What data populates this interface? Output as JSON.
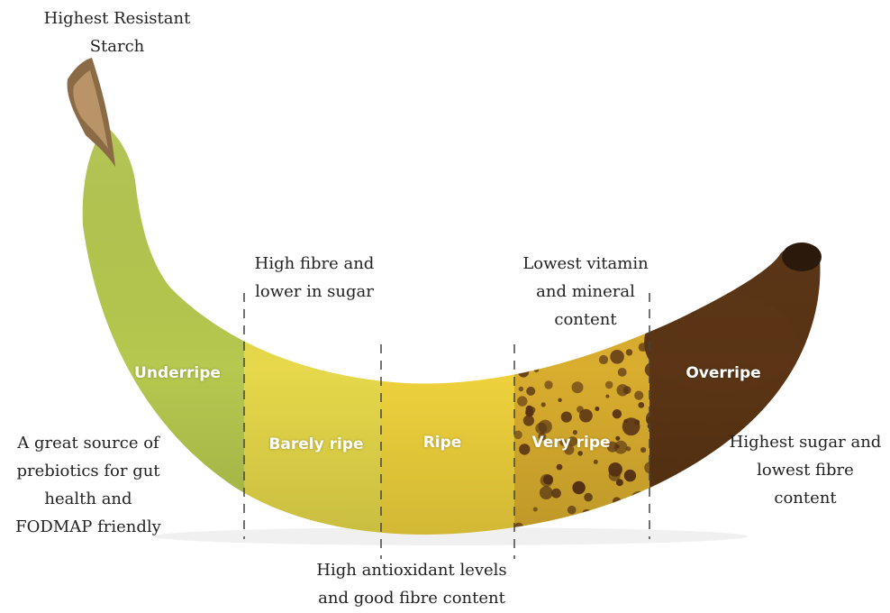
{
  "stages": [
    {
      "label": "Underripe",
      "color": "#b6c84f"
    },
    {
      "label": "Barely ripe",
      "color": "#e6d84a"
    },
    {
      "label": "Ripe",
      "color": "#efd23c"
    },
    {
      "label": "Very ripe",
      "color": "#d9ad2e"
    },
    {
      "label": "Overripe",
      "color": "#5a3414"
    }
  ],
  "annotations": {
    "stem": [
      "Highest Resistant",
      "Starch"
    ],
    "underripe_benefit": [
      "A great source of",
      "prebiotics for gut",
      "health and",
      "FODMAP friendly"
    ],
    "barely_ripe": [
      "High fibre and",
      "lower in sugar"
    ],
    "ripe": [
      "High antioxidant levels",
      "and good fibre content"
    ],
    "very_ripe": [
      "Lowest vitamin",
      "and mineral",
      "content"
    ],
    "overripe": [
      "Highest sugar and",
      "lowest fibre",
      "content"
    ]
  },
  "colors": {
    "background": "#ffffff",
    "text": "#222222",
    "stage_label": "#ffffff",
    "divider": "#444444",
    "spots": "#5b3515"
  }
}
